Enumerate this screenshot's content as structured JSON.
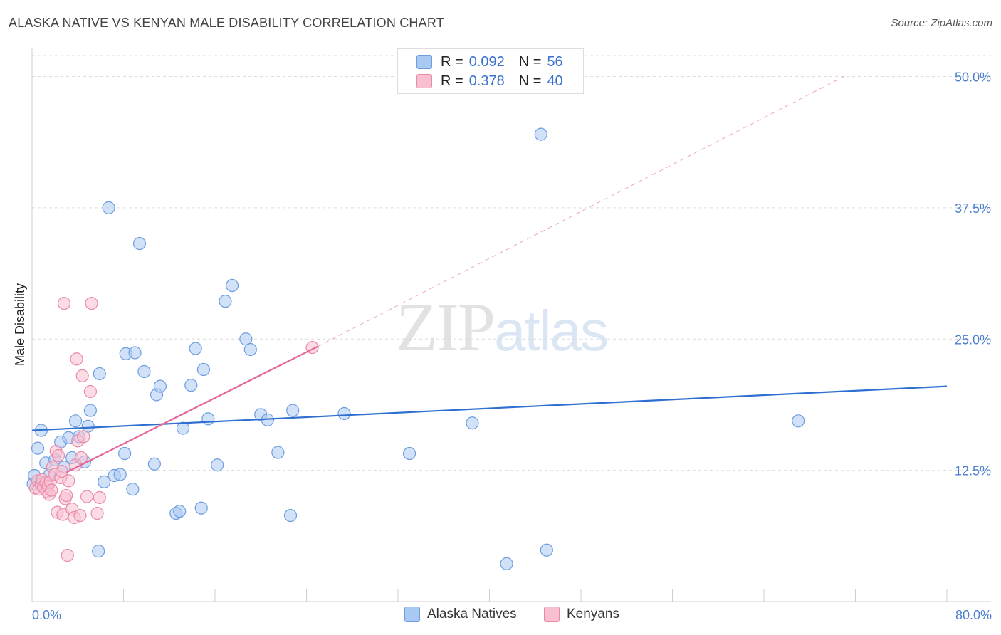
{
  "title": "ALASKA NATIVE VS KENYAN MALE DISABILITY CORRELATION CHART",
  "source": "Source: ZipAtlas.com",
  "watermark": {
    "zip": "ZIP",
    "atlas": "atlas"
  },
  "legend": {
    "rows": [
      {
        "label_r": "R =",
        "r": "0.092",
        "label_n": "N =",
        "n": "56",
        "color": "#a9c8f2",
        "border": "#6d9de0"
      },
      {
        "label_r": "R =",
        "r": "0.378",
        "label_n": "N =",
        "n": "40",
        "color": "#f7bfd0",
        "border": "#e98aa9"
      }
    ]
  },
  "bottom_legend": [
    {
      "label": "Alaska Natives",
      "color": "#a9c8f2",
      "border": "#6d9de0"
    },
    {
      "label": "Kenyans",
      "color": "#f7bfd0",
      "border": "#e98aa9"
    }
  ],
  "chart_data": {
    "type": "scatter",
    "title": "ALASKA NATIVE VS KENYAN MALE DISABILITY CORRELATION CHART",
    "xlabel": "",
    "ylabel": "Male Disability",
    "xlim": [
      0,
      80
    ],
    "ylim": [
      0,
      52
    ],
    "x_tick_labels": [
      "0.0%",
      "80.0%"
    ],
    "y_ticks": [
      12.5,
      25.0,
      37.5,
      50.0
    ],
    "y_tick_labels": [
      "12.5%",
      "25.0%",
      "37.5%",
      "50.0%"
    ],
    "series": [
      {
        "name": "Alaska Natives",
        "color": "#6d9de0",
        "fill": "#a9c8f2",
        "trend": {
          "x": [
            0,
            80
          ],
          "y": [
            16.3,
            20.5
          ],
          "color": "#2f6fcf"
        },
        "points": [
          [
            0.2,
            12.0
          ],
          [
            0.5,
            14.6
          ],
          [
            0.8,
            16.3
          ],
          [
            1.2,
            13.2
          ],
          [
            1.5,
            12.0
          ],
          [
            2.0,
            13.5
          ],
          [
            2.5,
            15.2
          ],
          [
            2.8,
            12.8
          ],
          [
            3.2,
            15.6
          ],
          [
            3.5,
            13.7
          ],
          [
            3.8,
            17.2
          ],
          [
            4.1,
            15.7
          ],
          [
            4.6,
            13.3
          ],
          [
            4.9,
            16.7
          ],
          [
            5.1,
            18.2
          ],
          [
            5.8,
            4.8
          ],
          [
            5.9,
            21.7
          ],
          [
            6.3,
            11.4
          ],
          [
            6.7,
            37.5
          ],
          [
            7.2,
            12.0
          ],
          [
            7.7,
            12.1
          ],
          [
            8.1,
            14.1
          ],
          [
            8.2,
            23.6
          ],
          [
            8.8,
            10.7
          ],
          [
            9.0,
            23.7
          ],
          [
            9.4,
            34.1
          ],
          [
            9.8,
            21.9
          ],
          [
            10.7,
            13.1
          ],
          [
            10.9,
            19.7
          ],
          [
            11.2,
            20.5
          ],
          [
            12.6,
            8.4
          ],
          [
            12.9,
            8.6
          ],
          [
            13.2,
            16.5
          ],
          [
            13.9,
            20.6
          ],
          [
            14.3,
            24.1
          ],
          [
            14.8,
            8.9
          ],
          [
            15.0,
            22.1
          ],
          [
            15.4,
            17.4
          ],
          [
            16.2,
            13.0
          ],
          [
            16.9,
            28.6
          ],
          [
            17.5,
            30.1
          ],
          [
            18.7,
            25.0
          ],
          [
            19.1,
            24.0
          ],
          [
            20.0,
            17.8
          ],
          [
            20.6,
            17.3
          ],
          [
            21.5,
            14.2
          ],
          [
            22.6,
            8.2
          ],
          [
            22.8,
            18.2
          ],
          [
            27.3,
            17.9
          ],
          [
            33.0,
            14.1
          ],
          [
            38.5,
            17.0
          ],
          [
            41.5,
            3.6
          ],
          [
            44.5,
            44.5
          ],
          [
            45.0,
            4.9
          ],
          [
            67.0,
            17.2
          ],
          [
            0.1,
            11.2
          ]
        ]
      },
      {
        "name": "Kenyans",
        "color": "#e98aa9",
        "fill": "#f7bfd0",
        "trend": {
          "x": [
            3,
            25
          ],
          "y": [
            12.3,
            24.3
          ],
          "color": "#e2679a"
        },
        "trend_extension": {
          "x": [
            25,
            71
          ],
          "y": [
            24.3,
            50.0
          ]
        },
        "points": [
          [
            0.3,
            10.8
          ],
          [
            0.5,
            11.5
          ],
          [
            0.6,
            10.7
          ],
          [
            0.8,
            11.2
          ],
          [
            0.9,
            11.6
          ],
          [
            1.0,
            10.9
          ],
          [
            1.2,
            11.3
          ],
          [
            1.3,
            10.5
          ],
          [
            1.4,
            11.0
          ],
          [
            1.5,
            10.2
          ],
          [
            1.6,
            11.4
          ],
          [
            1.7,
            10.6
          ],
          [
            1.8,
            12.8
          ],
          [
            2.0,
            12.1
          ],
          [
            2.1,
            14.3
          ],
          [
            2.2,
            8.5
          ],
          [
            2.3,
            13.9
          ],
          [
            2.5,
            11.8
          ],
          [
            2.6,
            12.4
          ],
          [
            2.7,
            8.3
          ],
          [
            2.8,
            28.4
          ],
          [
            2.9,
            9.8
          ],
          [
            3.0,
            10.1
          ],
          [
            3.1,
            4.4
          ],
          [
            3.2,
            11.5
          ],
          [
            3.5,
            8.8
          ],
          [
            3.7,
            8.0
          ],
          [
            3.8,
            13.0
          ],
          [
            3.9,
            23.1
          ],
          [
            4.0,
            15.3
          ],
          [
            4.2,
            8.2
          ],
          [
            4.3,
            13.7
          ],
          [
            4.4,
            21.5
          ],
          [
            4.5,
            15.7
          ],
          [
            4.8,
            10.0
          ],
          [
            5.1,
            20.0
          ],
          [
            5.2,
            28.4
          ],
          [
            5.7,
            8.4
          ],
          [
            5.9,
            9.9
          ],
          [
            24.5,
            24.2
          ]
        ]
      }
    ]
  }
}
